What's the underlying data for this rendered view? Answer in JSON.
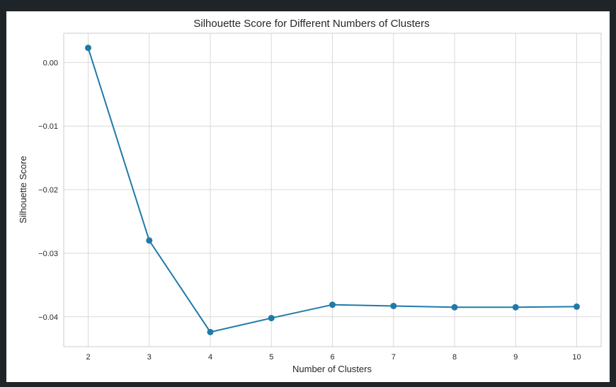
{
  "chart_data": {
    "type": "line",
    "title": "Silhouette Score for Different Numbers of Clusters",
    "xlabel": "Number of Clusters",
    "ylabel": "Silhouette Score",
    "x": [
      2,
      3,
      4,
      5,
      6,
      7,
      8,
      9,
      10
    ],
    "series": [
      {
        "values": [
          0.0023,
          -0.028,
          -0.0424,
          -0.0402,
          -0.0381,
          -0.0383,
          -0.0385,
          -0.0385,
          -0.0384
        ],
        "color": "#1f7aa8",
        "marker": "circle"
      }
    ],
    "xticks": [
      "2",
      "3",
      "4",
      "5",
      "6",
      "7",
      "8",
      "9",
      "10"
    ],
    "yticks": [
      {
        "value": 0.0,
        "label": "0.00"
      },
      {
        "value": -0.01,
        "label": "−0.01"
      },
      {
        "value": -0.02,
        "label": "−0.02"
      },
      {
        "value": -0.03,
        "label": "−0.03"
      },
      {
        "value": -0.04,
        "label": "−0.04"
      }
    ],
    "xlim": [
      1.6,
      10.4
    ],
    "ylim": [
      -0.0447,
      0.0046
    ],
    "grid": true
  }
}
